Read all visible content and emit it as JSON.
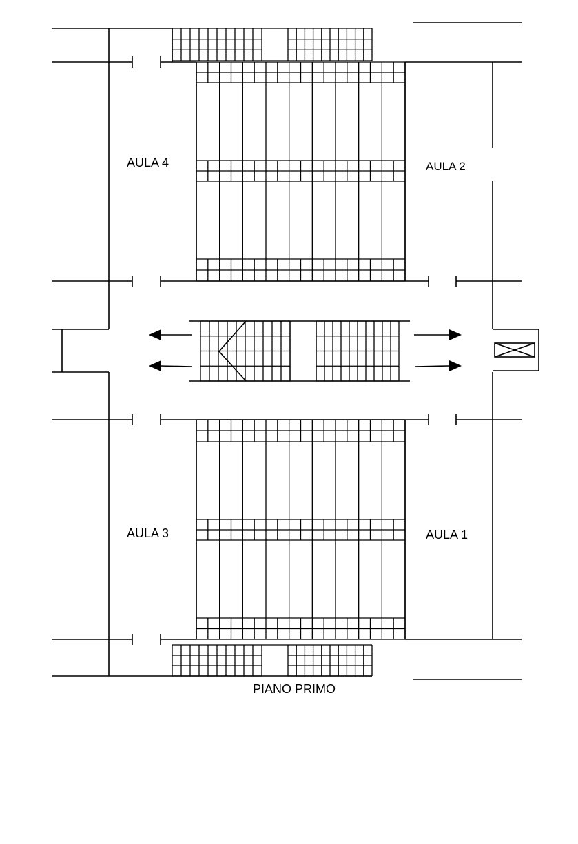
{
  "rooms": {
    "aula4": "AULA 4",
    "aula2": "AULA 2",
    "aula3": "AULA 3",
    "aula1": "AULA 1"
  },
  "caption": "PIANO PRIMO"
}
